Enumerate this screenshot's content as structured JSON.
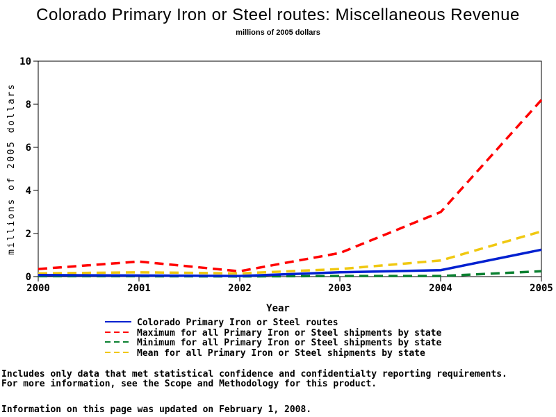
{
  "chart_data": {
    "type": "line",
    "title": "Colorado Primary Iron or Steel routes: Miscellaneous Revenue",
    "subtitle": "millions of 2005 dollars",
    "xlabel": "Year",
    "ylabel": "millions of 2005 dollars",
    "x": [
      2000,
      2001,
      2002,
      2003,
      2004,
      2005
    ],
    "x_tick_labels": [
      "2000",
      "2001",
      "2002",
      "2003",
      "2004",
      "2005"
    ],
    "y_ticks": [
      0,
      2,
      4,
      6,
      8,
      10
    ],
    "y_tick_labels": [
      "0",
      "2",
      "4",
      "6",
      "8",
      "10"
    ],
    "ylim": [
      0,
      10
    ],
    "grid": false,
    "legend_position": "bottom",
    "series": [
      {
        "name": "Colorado Primary Iron or Steel routes",
        "color": "#0020d0",
        "style": "solid",
        "values": [
          0.07,
          0.05,
          0.03,
          0.2,
          0.3,
          1.25
        ]
      },
      {
        "name": "Maximum for all Primary Iron or Steel shipments by state",
        "color": "#ff0000",
        "style": "dashed",
        "values": [
          0.35,
          0.7,
          0.25,
          1.1,
          3.0,
          8.2
        ]
      },
      {
        "name": "Minimum for all Primary Iron or Steel shipments by state",
        "color": "#0a8030",
        "style": "dashed",
        "values": [
          0.02,
          0.02,
          0.01,
          0.03,
          0.03,
          0.25
        ]
      },
      {
        "name": "Mean for all Primary Iron or Steel shipments by state",
        "color": "#f0c810",
        "style": "dashed",
        "values": [
          0.15,
          0.2,
          0.15,
          0.35,
          0.75,
          2.1
        ]
      }
    ]
  },
  "footnotes": {
    "line1": "Includes only data that met statistical confidence and confidentialty reporting requirements.",
    "line2": "For more information, see the Scope and Methodology for this product.",
    "updated": "Information on this page was updated on February 1, 2008."
  }
}
